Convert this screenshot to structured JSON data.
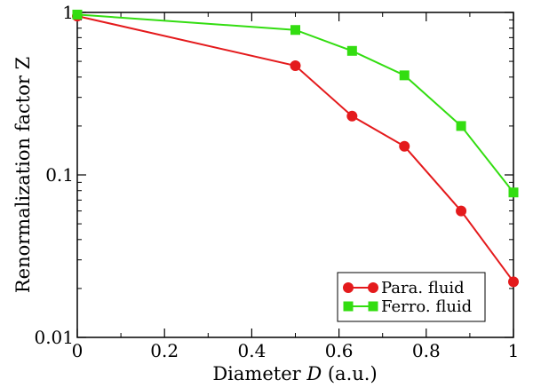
{
  "chart_data": {
    "type": "line",
    "title": "",
    "xlabel": "Diameter D (a.u.)",
    "xlabel_prefix": "Diameter ",
    "xlabel_italic": "D",
    "xlabel_suffix": " (a.u.)",
    "ylabel": "Renormalization factor Z",
    "y_scale": "log",
    "xlim": [
      0,
      1
    ],
    "ylim": [
      0.01,
      1
    ],
    "x_ticks": [
      0,
      0.2,
      0.4,
      0.6,
      0.8,
      1
    ],
    "x_tick_labels": [
      "0",
      "0.2",
      "0.4",
      "0.6",
      "0.8",
      "1"
    ],
    "y_ticks": [
      0.01,
      0.1,
      1
    ],
    "y_tick_labels": [
      "0.01",
      "0.1",
      "1"
    ],
    "grid": false,
    "legend_position": "bottom-right",
    "series": [
      {
        "name": "Para. fluid",
        "color": "#e41a1c",
        "marker": "circle",
        "x": [
          0,
          0.5,
          0.63,
          0.75,
          0.88,
          1.0
        ],
        "y": [
          0.95,
          0.47,
          0.23,
          0.15,
          0.06,
          0.022
        ]
      },
      {
        "name": "Ferro. fluid",
        "color": "#33dd11",
        "marker": "square",
        "x": [
          0,
          0.5,
          0.63,
          0.75,
          0.88,
          1.0
        ],
        "y": [
          0.97,
          0.78,
          0.58,
          0.41,
          0.2,
          0.078
        ]
      }
    ]
  }
}
